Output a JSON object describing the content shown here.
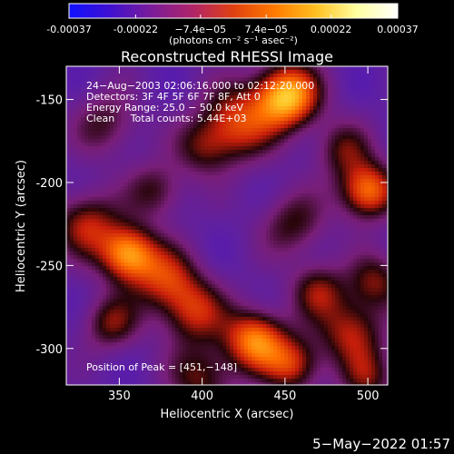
{
  "colorbar": {
    "tick_labels": [
      "-0.00037",
      "-0.00022",
      "−7.4e−05",
      "7.4e−05",
      "0.00022",
      "0.00037"
    ],
    "ticks": [
      -0.00037,
      -0.00022,
      -7.4e-05,
      7.4e-05,
      0.00022,
      0.00037
    ],
    "range": [
      -0.00037,
      0.00037
    ],
    "unit_label": "(photons cm⁻² s⁻¹ asec⁻²)",
    "colors": [
      "#1010ff",
      "#4010d0",
      "#7a1c9a",
      "#b0246a",
      "#e04010",
      "#ff7a00",
      "#ffc020",
      "#ffffa0",
      "#ffffff"
    ]
  },
  "chart_data": {
    "type": "heatmap",
    "title": "Reconstructed RHESSI Image",
    "xlabel": "Heliocentric X (arcsec)",
    "ylabel": "Heliocentric Y (arcsec)",
    "xlim": [
      318,
      512
    ],
    "ylim": [
      -322,
      -130
    ],
    "xticks": [
      350,
      400,
      450,
      500
    ],
    "yticks": [
      -150,
      -200,
      -250,
      -300
    ],
    "info_lines": [
      "24−Aug−2003 02:06:16.000 to 02:12:20.000",
      "Detectors: 3F 4F 5F 6F 7F 8F, Att 0",
      "Energy Range: 25.0 − 50.0 keV",
      "Clean     Total counts: 5.44E+03"
    ],
    "peak_label": "Position of Peak = [451,−148]",
    "peak": [
      451,
      -148
    ]
  },
  "footer": {
    "date": "5−May−2022 01:57"
  }
}
